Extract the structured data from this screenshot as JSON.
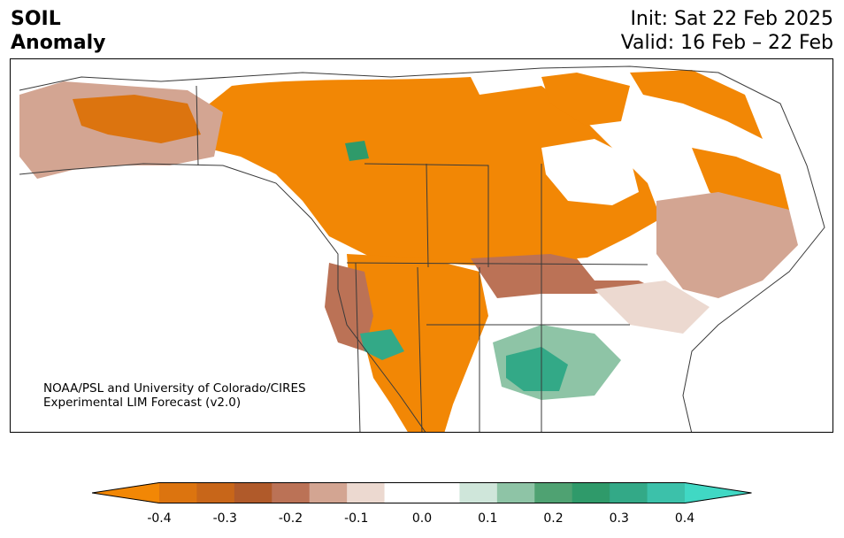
{
  "title": {
    "line1": "SOIL",
    "line2": "Anomaly"
  },
  "dates": {
    "init": "Init: Sat 22 Feb 2025",
    "valid": "Valid: 16 Feb – 22 Feb"
  },
  "credit": {
    "line1": "NOAA/PSL and University of Colorado/CIRES",
    "line2": "Experimental LIM Forecast (v2.0)"
  },
  "colorbar": {
    "levels": [
      "-0.4",
      "-0.3",
      "-0.2",
      "-0.1",
      "0.0",
      "0.1",
      "0.2",
      "0.3",
      "0.4"
    ],
    "colors": [
      "#f28705",
      "#dc740f",
      "#c86619",
      "#b05a2a",
      "#bb7256",
      "#d3a592",
      "#ecd9d0",
      "#ffffff",
      "#ffffff",
      "#cfe6da",
      "#8ec4a6",
      "#4fa272",
      "#2f9a6a",
      "#33a987",
      "#3cc1aa",
      "#40d8c4"
    ]
  },
  "colors": {
    "strong_negative": "#f28705",
    "negative": "#bb7256",
    "weak_negative": "#ecd9d0",
    "positive": "#2f9a6a",
    "strong_positive": "#40d8c4",
    "border": "#3a3a3a"
  }
}
